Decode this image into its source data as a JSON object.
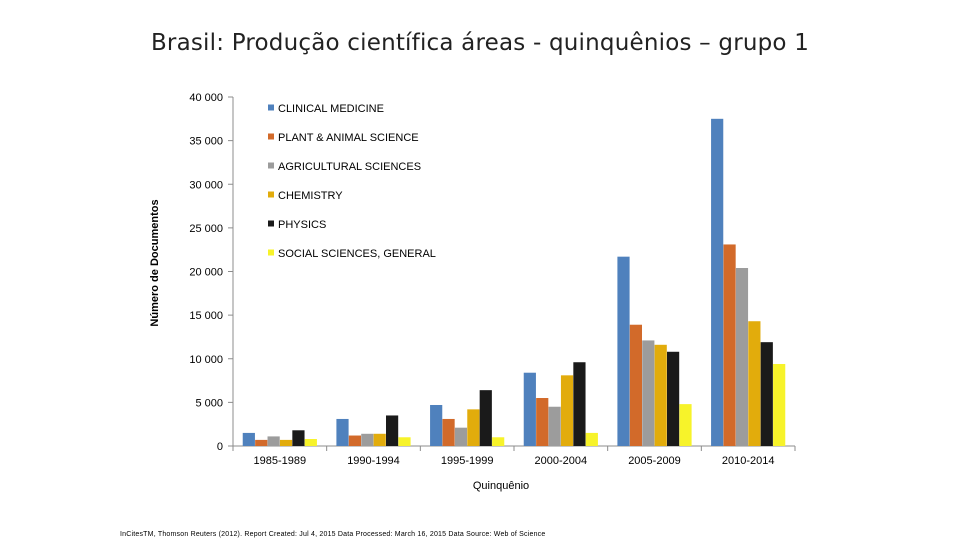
{
  "page": {
    "title": "Brasil: Produção científica áreas - quinquênios – grupo 1",
    "source": "InCitesTM, Thomson Reuters (2012). Report Created: Jul 4, 2015 Data Processed: March 16, 2015 Data Source: Web of Science"
  },
  "chart_data": {
    "type": "bar",
    "title": "Brasil: Produção científica áreas - quinquênios – grupo 1",
    "xlabel": "Quinquênio",
    "ylabel": "Número de Documentos",
    "ylim": [
      0,
      40000
    ],
    "yticks": [
      0,
      5000,
      10000,
      15000,
      20000,
      25000,
      30000,
      35000,
      40000
    ],
    "ytick_labels": [
      "0",
      "5 000",
      "10 000",
      "15 000",
      "20 000",
      "25 000",
      "30 000",
      "35 000",
      "40 000"
    ],
    "grid": false,
    "legend_position": "top-left",
    "categories": [
      "1985-1989",
      "1990-1994",
      "1995-1999",
      "2000-2004",
      "2005-2009",
      "2010-2014"
    ],
    "series": [
      {
        "name": "CLINICAL MEDICINE",
        "color": "#4f81bd",
        "values": [
          1500,
          3100,
          4700,
          8400,
          21700,
          37500
        ]
      },
      {
        "name": "PLANT & ANIMAL SCIENCE",
        "color": "#d26a2a",
        "values": [
          700,
          1200,
          3100,
          5500,
          13900,
          23100
        ]
      },
      {
        "name": "AGRICULTURAL SCIENCES",
        "color": "#9c9c9c",
        "values": [
          1100,
          1400,
          2100,
          4500,
          12100,
          20400
        ]
      },
      {
        "name": "CHEMISTRY",
        "color": "#e2ac0c",
        "values": [
          700,
          1400,
          4200,
          8100,
          11600,
          14300
        ]
      },
      {
        "name": "PHYSICS",
        "color": "#1a1a1a",
        "values": [
          1800,
          3500,
          6400,
          9600,
          10800,
          11900
        ]
      },
      {
        "name": "SOCIAL SCIENCES, GENERAL",
        "color": "#f7f32a",
        "values": [
          800,
          1000,
          1000,
          1500,
          4800,
          9400
        ]
      }
    ]
  }
}
